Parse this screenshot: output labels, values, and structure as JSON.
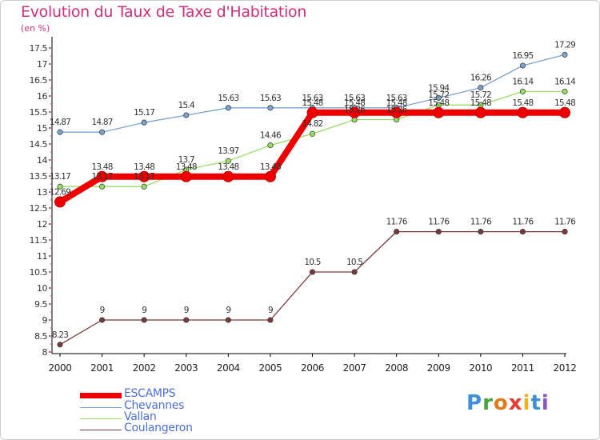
{
  "title": "Evolution du Taux de Taxe d'Habitation",
  "unit_label": "(en %)",
  "logo": {
    "letters": [
      "P",
      "r",
      "o",
      "x",
      "i",
      "t",
      "i"
    ],
    "colors": [
      "#3c8fd8",
      "#4aa43c",
      "#e07a1c",
      "#e63a2e",
      "#f2b21c",
      "#3c8fd8",
      "#8a58b8"
    ]
  },
  "chart_data": {
    "type": "line",
    "title": "Evolution du Taux de Taxe d'Habitation",
    "ylabel": "(en %)",
    "xlabel": "",
    "ylim": [
      8,
      17.5
    ],
    "grid": false,
    "legend_position": "bottom-left",
    "x": [
      "2000",
      "2001",
      "2002",
      "2003",
      "2004",
      "2005",
      "2006",
      "2007",
      "2008",
      "2009",
      "2010",
      "2011",
      "2012"
    ],
    "y_ticks": [
      "8",
      "8.5",
      "9",
      "9.5",
      "10",
      "10.5",
      "11",
      "11.5",
      "12",
      "12.5",
      "13",
      "13.5",
      "14",
      "14.5",
      "15",
      "15.5",
      "16",
      "16.5",
      "17",
      "17.5"
    ],
    "series": [
      {
        "name": "ESCAMPS",
        "color": "#ee0000",
        "values": [
          12.69,
          13.48,
          13.48,
          13.48,
          13.48,
          13.48,
          15.48,
          15.48,
          15.48,
          15.48,
          15.48,
          15.48,
          15.48
        ],
        "labels": [
          "12.69",
          "13.48",
          "13.48",
          "13.48",
          "13.48",
          "13.48",
          "15.48",
          "15.48",
          "15.48",
          "15.48",
          "15.48",
          "15.48",
          "15.48"
        ]
      },
      {
        "name": "Chevannes",
        "color": "#7aa3cf",
        "values": [
          14.87,
          14.87,
          15.17,
          15.4,
          15.63,
          15.63,
          15.63,
          15.63,
          15.63,
          15.94,
          16.26,
          16.95,
          17.29
        ],
        "labels": [
          "14.87",
          "14.87",
          "15.17",
          "15.4",
          "15.63",
          "15.63",
          "15.63",
          "15.63",
          "15.63",
          "15.94",
          "16.26",
          "16.95",
          "17.29"
        ]
      },
      {
        "name": "Vallan",
        "color": "#99dd66",
        "values": [
          13.17,
          13.17,
          13.17,
          13.7,
          13.97,
          14.46,
          14.82,
          15.26,
          15.26,
          15.72,
          15.72,
          16.14,
          16.14
        ],
        "labels": [
          "13.17",
          "13.17",
          "13.17",
          "13.7",
          "13.97",
          "14.46",
          "14.82",
          "15.26",
          "15.26",
          "15.72",
          "15.72",
          "16.14",
          "16.14"
        ]
      },
      {
        "name": "Coulangeron",
        "color": "#7a3a3a",
        "values": [
          8.23,
          9,
          9,
          9,
          9,
          9,
          10.5,
          10.5,
          11.76,
          11.76,
          11.76,
          11.76,
          11.76
        ],
        "labels": [
          "8.23",
          "9",
          "9",
          "9",
          "9",
          "9",
          "10.5",
          "10.5",
          "11.76",
          "11.76",
          "11.76",
          "11.76",
          "11.76"
        ]
      }
    ]
  }
}
